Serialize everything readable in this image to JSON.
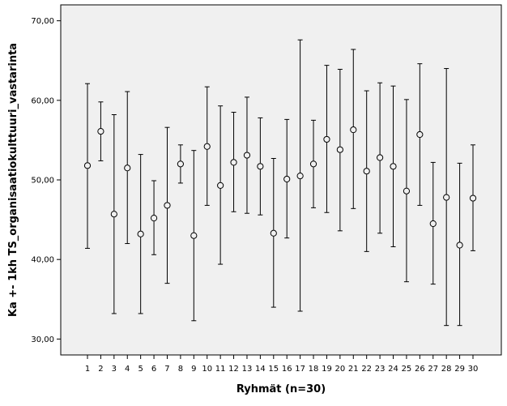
{
  "chart_data": {
    "type": "scatter",
    "subtype": "error-bar",
    "xlabel": "Ryhmät (n=30)",
    "ylabel": "Ka +- 1kh TS_organisaatiokulttuuri_vastarinta",
    "ylim": [
      28,
      72
    ],
    "yticks": [
      "30,00",
      "40,00",
      "50,00",
      "60,00",
      "70,00"
    ],
    "ytick_values": [
      30,
      40,
      50,
      60,
      70
    ],
    "categories": [
      "1",
      "2",
      "3",
      "4",
      "5",
      "6",
      "7",
      "8",
      "9",
      "10",
      "11",
      "12",
      "13",
      "14",
      "15",
      "16",
      "17",
      "18",
      "19",
      "20",
      "21",
      "22",
      "23",
      "24",
      "25",
      "26",
      "27",
      "28",
      "29",
      "30"
    ],
    "means": [
      51.8,
      56.1,
      45.7,
      51.5,
      43.2,
      45.2,
      46.8,
      52.0,
      43.0,
      54.2,
      49.3,
      52.2,
      53.1,
      51.7,
      43.3,
      50.1,
      50.5,
      52.0,
      55.1,
      53.8,
      56.3,
      51.1,
      52.8,
      51.7,
      48.6,
      55.7,
      44.5,
      47.8,
      41.8,
      47.7
    ],
    "upper": [
      62.1,
      59.8,
      58.2,
      61.1,
      53.2,
      49.9,
      56.6,
      54.4,
      53.7,
      61.7,
      59.3,
      58.5,
      60.4,
      57.8,
      52.7,
      57.6,
      67.6,
      57.5,
      64.4,
      63.9,
      66.4,
      61.2,
      62.2,
      61.8,
      60.1,
      64.6,
      52.2,
      64.0,
      52.1,
      54.4
    ],
    "lower": [
      41.4,
      52.4,
      33.2,
      42.0,
      33.2,
      40.6,
      37.0,
      49.6,
      32.3,
      46.8,
      39.4,
      46.0,
      45.8,
      45.6,
      34.0,
      42.7,
      33.5,
      46.5,
      45.9,
      43.6,
      46.4,
      41.0,
      43.3,
      41.6,
      37.2,
      46.8,
      36.9,
      31.7,
      31.7,
      41.1
    ],
    "grid": false,
    "legend": "none",
    "colors": {
      "plot_background": "#f0f0f0",
      "marker_stroke": "#000000",
      "error_bar": "#000000"
    }
  }
}
